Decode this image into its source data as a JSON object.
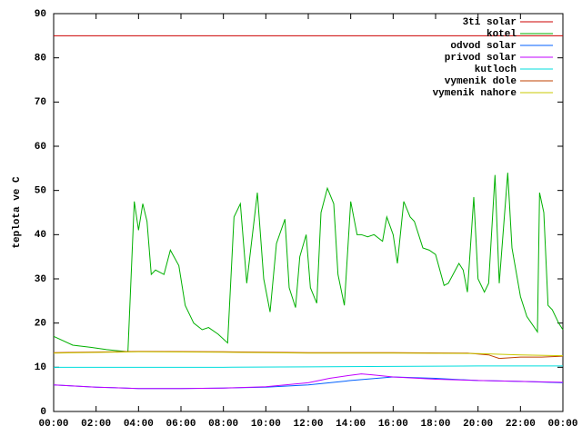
{
  "chart_data": {
    "type": "line",
    "y_label": "teplota ve C",
    "xlim": [
      0,
      24
    ],
    "ylim": [
      0,
      90
    ],
    "xticks": [
      {
        "value": 0,
        "label": "00:00"
      },
      {
        "value": 2,
        "label": "02:00"
      },
      {
        "value": 4,
        "label": "04:00"
      },
      {
        "value": 6,
        "label": "06:00"
      },
      {
        "value": 8,
        "label": "08:00"
      },
      {
        "value": 10,
        "label": "10:00"
      },
      {
        "value": 12,
        "label": "12:00"
      },
      {
        "value": 14,
        "label": "14:00"
      },
      {
        "value": 16,
        "label": "16:00"
      },
      {
        "value": 18,
        "label": "18:00"
      },
      {
        "value": 20,
        "label": "20:00"
      },
      {
        "value": 22,
        "label": "22:00"
      },
      {
        "value": 24,
        "label": "00:00"
      }
    ],
    "yticks": [
      0,
      10,
      20,
      30,
      40,
      50,
      60,
      70,
      80,
      90
    ],
    "legend": "top right",
    "series": [
      {
        "name": "3ti solar",
        "color": "#cc0000",
        "x": [
          0,
          24
        ],
        "values": [
          85,
          85
        ]
      },
      {
        "name": "kotel",
        "color": "#00b000",
        "x": [
          0,
          0.9,
          1.75,
          2.5,
          3.5,
          3.8,
          4,
          4.2,
          4.4,
          4.6,
          4.8,
          5.2,
          5.5,
          5.9,
          6.2,
          6.6,
          7,
          7.3,
          7.75,
          8.2,
          8.5,
          8.8,
          9.1,
          9.6,
          9.9,
          10.2,
          10.5,
          10.9,
          11.1,
          11.4,
          11.6,
          11.9,
          12.1,
          12.4,
          12.6,
          12.9,
          13.2,
          13.4,
          13.7,
          14,
          14.3,
          14.5,
          14.8,
          15.1,
          15.5,
          15.7,
          16,
          16.2,
          16.5,
          16.8,
          17,
          17.4,
          17.7,
          18,
          18.4,
          18.6,
          19.1,
          19.3,
          19.5,
          19.8,
          20,
          20.3,
          20.5,
          20.8,
          21,
          21.4,
          21.6,
          22,
          22.3,
          22.8,
          22.9,
          23.1,
          23.3,
          23.5,
          23.8,
          24
        ],
        "values": [
          17,
          15,
          14.5,
          14,
          13.5,
          47.5,
          41,
          47,
          43,
          31,
          32,
          31,
          36.5,
          33,
          24,
          20,
          18.5,
          19,
          17.5,
          15.5,
          44,
          47,
          29,
          49.5,
          30,
          22.5,
          38,
          43.5,
          28,
          23.5,
          35,
          40,
          28,
          24.5,
          45,
          50.5,
          47,
          31,
          24,
          47.5,
          40,
          40,
          39.5,
          40,
          38.5,
          44,
          40,
          33.5,
          47.5,
          44,
          43,
          37,
          36.5,
          35.5,
          28.5,
          29,
          33.5,
          32,
          27,
          48.5,
          30,
          27,
          29,
          53.5,
          29,
          54,
          37,
          26,
          21.5,
          18,
          49.5,
          45,
          24,
          23,
          20,
          18.5
        ]
      },
      {
        "name": "odvod solar",
        "color": "#0060ff",
        "x": [
          0,
          2,
          4,
          6,
          8,
          10,
          12,
          14,
          16,
          18,
          20,
          22,
          24
        ],
        "values": [
          6,
          5.5,
          5.2,
          5.2,
          5.3,
          5.5,
          6,
          7,
          7.8,
          7.5,
          7,
          6.8,
          6.5
        ]
      },
      {
        "name": "privod solar",
        "color": "#c000ff",
        "x": [
          0,
          2,
          4,
          6,
          8,
          10,
          12,
          13,
          14,
          14.5,
          15,
          16,
          18,
          20,
          22,
          24
        ],
        "values": [
          6,
          5.5,
          5.2,
          5.2,
          5.3,
          5.6,
          6.5,
          7.5,
          8.2,
          8.5,
          8.3,
          7.8,
          7.3,
          7,
          6.8,
          6.6
        ]
      },
      {
        "name": "kutloch",
        "color": "#00dddd",
        "x": [
          0,
          4,
          8,
          12,
          16,
          20,
          24
        ],
        "values": [
          10,
          10,
          10,
          10.1,
          10.2,
          10.3,
          10.3
        ]
      },
      {
        "name": "vymenik dole",
        "color": "#c04000",
        "x": [
          0,
          4,
          8,
          12,
          16,
          19.5,
          20.5,
          21,
          22,
          23,
          24
        ],
        "values": [
          13.3,
          13.6,
          13.5,
          13.3,
          13.3,
          13.2,
          12.8,
          12,
          12.3,
          12.3,
          12.5
        ]
      },
      {
        "name": "vymenik nahore",
        "color": "#c8c800",
        "x": [
          0,
          4,
          8,
          12,
          16,
          20,
          22,
          24
        ],
        "values": [
          13.2,
          13.5,
          13.4,
          13.2,
          13.2,
          13.1,
          12.8,
          12.6
        ]
      }
    ]
  }
}
